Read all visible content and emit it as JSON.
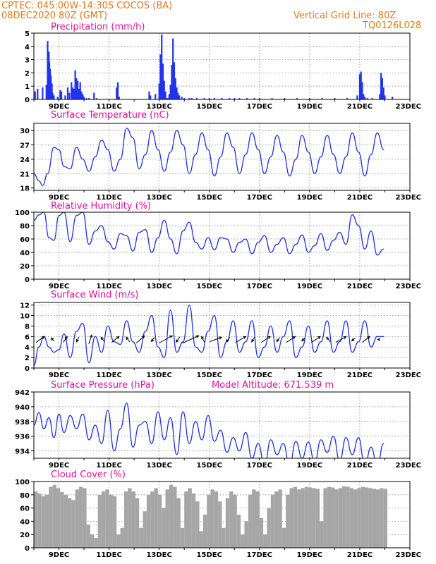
{
  "header": {
    "line1_left": "CPTEC:   045:00W-14:30S   COCOS (BA)",
    "line2_left": "08DEC2020 80Z (GMT)",
    "line1_right": "Vertical Grid Line: 80Z",
    "line2_right": "TQ0126L028"
  },
  "x_labels": [
    "9DEC",
    "11DEC",
    "13DEC",
    "15DEC",
    "17DEC",
    "19DEC",
    "21DEC",
    "23DEC"
  ],
  "colors": {
    "header": "#e07a1a",
    "panel_title": "#e0109a",
    "line": "#2233dd",
    "bars": "#2233ee",
    "cloud": "#a6a6a6",
    "arrows": "#000000"
  },
  "chart_data": [
    {
      "id": "precip",
      "type": "bar",
      "title": "Precipitation (mm/h)",
      "ylim": [
        0,
        5
      ],
      "yticks": [
        0,
        1,
        2,
        3,
        4,
        5
      ],
      "x": [
        0.05,
        0.15,
        0.35,
        0.5,
        0.55,
        0.6,
        0.62,
        0.65,
        0.68,
        0.72,
        0.75,
        0.8,
        0.95,
        1.05,
        1.1,
        1.25,
        1.35,
        1.42,
        1.5,
        1.55,
        1.6,
        1.65,
        1.7,
        1.75,
        1.8,
        1.85,
        1.9,
        1.95,
        2.0,
        2.1,
        2.2,
        2.4,
        2.5,
        3.3,
        3.35,
        3.4,
        4.6,
        4.65,
        4.85,
        5.0,
        5.05,
        5.1,
        5.15,
        5.2,
        5.25,
        5.3,
        5.35,
        5.4,
        5.45,
        5.5,
        5.55,
        5.6,
        5.65,
        5.7,
        5.75,
        5.8,
        5.9,
        6.0,
        6.2,
        6.3,
        6.5,
        6.8,
        7.0,
        7.2,
        7.5,
        7.8,
        8.0,
        8.2,
        8.5,
        8.8,
        9.0,
        9.5,
        10.0,
        10.5,
        11.0,
        11.5,
        12.0,
        12.5,
        12.9,
        13.0,
        13.05,
        13.1,
        13.15,
        13.2,
        13.3,
        13.5,
        13.8,
        13.85,
        13.9,
        13.95,
        14.0,
        14.3
      ],
      "values": [
        0.6,
        0.8,
        0.9,
        1.1,
        4.4,
        3.6,
        2.8,
        2.3,
        1.8,
        1.2,
        0.5,
        0.3,
        0.2,
        0.7,
        0.6,
        0.3,
        0.9,
        0.5,
        1.3,
        0.9,
        0.8,
        2.2,
        1.6,
        1.4,
        0.8,
        1.3,
        0.6,
        0.4,
        0.2,
        0.1,
        0.1,
        0.5,
        0.1,
        0.9,
        1.3,
        0.2,
        0.6,
        0.3,
        0.4,
        1.2,
        3.4,
        4.9,
        2.7,
        1.4,
        0.6,
        0.1,
        0.1,
        0.4,
        1.1,
        2.6,
        4.6,
        2.8,
        1.6,
        0.9,
        0.5,
        0.3,
        0.2,
        0.1,
        0.1,
        0.1,
        0.1,
        0.1,
        0.1,
        0.1,
        0.1,
        0.1,
        0.1,
        0.1,
        0.1,
        0.1,
        0.1,
        0.1,
        0.1,
        0.1,
        0.1,
        0.1,
        0.1,
        0.1,
        0.3,
        1.9,
        2.1,
        1.3,
        0.4,
        0.2,
        0.1,
        0.1,
        0.4,
        2.0,
        1.6,
        0.9,
        0.3,
        0.2
      ]
    },
    {
      "id": "temp",
      "type": "line",
      "title": "Surface Temperature (nC)",
      "ylim": [
        17.5,
        31.5
      ],
      "yticks": [
        18,
        21,
        24,
        27,
        30
      ],
      "x": [
        0,
        0.2,
        0.35,
        0.55,
        0.8,
        1.0,
        1.2,
        1.45,
        1.7,
        1.95,
        2.2,
        2.45,
        2.7,
        2.95,
        3.2,
        3.45,
        3.7,
        3.95,
        4.2,
        4.45,
        4.7,
        4.95,
        5.2,
        5.45,
        5.7,
        5.95,
        6.2,
        6.45,
        6.7,
        6.95,
        7.2,
        7.45,
        7.7,
        7.95,
        8.2,
        8.45,
        8.7,
        8.95,
        9.2,
        9.45,
        9.7,
        9.95,
        10.2,
        10.45,
        10.7,
        10.95,
        11.2,
        11.45,
        11.7,
        11.95,
        12.2,
        12.45,
        12.7,
        12.95,
        13.2,
        13.45,
        13.7,
        13.95
      ],
      "values": [
        21,
        19.5,
        18.5,
        21,
        26.5,
        26,
        22.5,
        22,
        26.5,
        24,
        21.5,
        24.5,
        28,
        26,
        21.5,
        24,
        30.5,
        28.5,
        22,
        25,
        30,
        26,
        21.5,
        25.5,
        30,
        27,
        21,
        25,
        29.5,
        26,
        20.5,
        24.5,
        29.5,
        26.5,
        21,
        25,
        29.5,
        26,
        21,
        24.5,
        29,
        25.5,
        20.5,
        24,
        29,
        25.5,
        21,
        24.5,
        29,
        25,
        21,
        24.5,
        29.5,
        25.5,
        20.5,
        25,
        29.5,
        26
      ]
    },
    {
      "id": "rh",
      "type": "line",
      "title": "Relative Humidity (%)",
      "ylim": [
        0,
        100
      ],
      "yticks": [
        0,
        20,
        40,
        60,
        80,
        100
      ],
      "x": [
        0,
        0.2,
        0.4,
        0.6,
        0.8,
        1.0,
        1.2,
        1.45,
        1.7,
        1.95,
        2.2,
        2.45,
        2.7,
        2.95,
        3.2,
        3.45,
        3.7,
        3.95,
        4.2,
        4.45,
        4.7,
        4.95,
        5.2,
        5.45,
        5.7,
        5.95,
        6.2,
        6.45,
        6.7,
        6.95,
        7.2,
        7.45,
        7.7,
        7.95,
        8.2,
        8.45,
        8.7,
        8.95,
        9.2,
        9.45,
        9.7,
        9.95,
        10.2,
        10.45,
        10.7,
        10.95,
        11.2,
        11.45,
        11.7,
        11.95,
        12.2,
        12.45,
        12.7,
        12.95,
        13.2,
        13.45,
        13.7,
        13.95
      ],
      "values": [
        88,
        96,
        100,
        62,
        58,
        95,
        100,
        56,
        95,
        100,
        52,
        72,
        80,
        56,
        45,
        68,
        65,
        42,
        70,
        74,
        40,
        62,
        88,
        60,
        38,
        72,
        85,
        55,
        45,
        62,
        44,
        62,
        60,
        40,
        55,
        60,
        38,
        55,
        65,
        40,
        52,
        62,
        38,
        52,
        66,
        40,
        50,
        68,
        43,
        58,
        70,
        52,
        96,
        80,
        45,
        72,
        36,
        45
      ]
    },
    {
      "id": "wind",
      "type": "line",
      "title": "Surface Wind (m/s)",
      "ylim": [
        0,
        12.5
      ],
      "yticks": [
        0,
        2,
        4,
        6,
        8,
        10,
        12
      ],
      "x": [
        0,
        0.2,
        0.4,
        0.6,
        0.8,
        1.0,
        1.2,
        1.45,
        1.7,
        1.95,
        2.2,
        2.45,
        2.7,
        2.95,
        3.2,
        3.45,
        3.7,
        3.95,
        4.2,
        4.45,
        4.7,
        4.95,
        5.2,
        5.45,
        5.7,
        5.95,
        6.2,
        6.45,
        6.7,
        6.95,
        7.2,
        7.45,
        7.7,
        7.95,
        8.2,
        8.45,
        8.7,
        8.95,
        9.2,
        9.45,
        9.7,
        9.95,
        10.2,
        10.45,
        10.7,
        10.95,
        11.2,
        11.45,
        11.7,
        11.95,
        12.2,
        12.45,
        12.7,
        12.95,
        13.2,
        13.45,
        13.7,
        13.95
      ],
      "values": [
        0.5,
        4,
        6,
        4,
        3,
        3.5,
        6.5,
        2,
        7,
        8.5,
        1,
        6,
        3,
        8,
        5,
        4.5,
        9,
        5,
        3,
        7,
        10,
        4,
        2,
        11,
        3,
        5,
        12,
        4,
        3,
        7,
        10,
        2,
        5,
        9,
        3,
        5,
        9,
        2,
        4,
        8,
        3,
        6,
        9,
        2,
        4,
        8,
        3,
        5,
        9,
        3,
        5,
        9,
        3,
        5,
        9,
        4,
        6,
        6
      ]
    },
    {
      "id": "pressure",
      "type": "line",
      "title": "Surface Pressure (hPa)",
      "annotation": "Model Altitude: 671.539 m",
      "ylim": [
        933,
        942
      ],
      "yticks": [
        934,
        936,
        938,
        940,
        942
      ],
      "x": [
        0,
        0.2,
        0.4,
        0.6,
        0.8,
        1.0,
        1.2,
        1.45,
        1.7,
        1.95,
        2.2,
        2.45,
        2.7,
        2.95,
        3.2,
        3.45,
        3.7,
        3.95,
        4.2,
        4.45,
        4.7,
        4.95,
        5.2,
        5.45,
        5.7,
        5.95,
        6.2,
        6.45,
        6.7,
        6.95,
        7.2,
        7.45,
        7.7,
        7.95,
        8.2,
        8.45,
        8.7,
        8.95,
        9.2,
        9.45,
        9.7,
        9.95,
        10.2,
        10.45,
        10.7,
        10.95,
        11.2,
        11.45,
        11.7,
        11.95,
        12.2,
        12.45,
        12.7,
        12.95,
        13.2,
        13.45,
        13.7,
        13.95
      ],
      "values": [
        937.5,
        939.2,
        937,
        938.5,
        935.8,
        939,
        936.5,
        938.8,
        937,
        939,
        935.5,
        937.5,
        935,
        939.5,
        934,
        937,
        940.5,
        934.5,
        937.5,
        938,
        935,
        939.3,
        935.5,
        938.5,
        933.5,
        939.3,
        935,
        938,
        935.5,
        938.8,
        935.3,
        936.8,
        933.8,
        935.8,
        934,
        936.5,
        933,
        935,
        932,
        935.5,
        933.5,
        935,
        932,
        935.3,
        933,
        935.2,
        932.4,
        935.5,
        933.8,
        936,
        932.6,
        935.8,
        933.5,
        935.8,
        932,
        934.5,
        932,
        935
      ]
    },
    {
      "id": "cloud",
      "type": "bar",
      "title": "Cloud Cover (%)",
      "ylim": [
        0,
        100
      ],
      "yticks": [
        0,
        20,
        40,
        60,
        80,
        100
      ],
      "x": [
        0,
        0.15,
        0.3,
        0.45,
        0.6,
        0.75,
        0.9,
        1.05,
        1.2,
        1.35,
        1.5,
        1.65,
        1.8,
        1.95,
        2.1,
        2.25,
        2.4,
        2.55,
        2.7,
        2.85,
        3.0,
        3.15,
        3.3,
        3.45,
        3.6,
        3.75,
        3.9,
        4.05,
        4.2,
        4.35,
        4.5,
        4.65,
        4.8,
        4.95,
        5.1,
        5.25,
        5.4,
        5.55,
        5.7,
        5.85,
        6.0,
        6.15,
        6.3,
        6.45,
        6.6,
        6.75,
        6.9,
        7.05,
        7.2,
        7.35,
        7.5,
        7.65,
        7.8,
        7.95,
        8.1,
        8.25,
        8.4,
        8.55,
        8.7,
        8.85,
        9.0,
        9.15,
        9.3,
        9.45,
        9.6,
        9.75,
        9.9,
        10.05,
        10.2,
        10.35,
        10.5,
        10.65,
        10.8,
        10.95,
        11.1,
        11.25,
        11.4,
        11.55,
        11.7,
        11.85,
        12.0,
        12.15,
        12.3,
        12.45,
        12.6,
        12.75,
        12.9,
        13.05,
        13.2,
        13.35,
        13.5,
        13.65,
        13.8,
        13.95
      ],
      "values": [
        85,
        82,
        78,
        80,
        92,
        95,
        90,
        84,
        80,
        75,
        72,
        88,
        92,
        90,
        35,
        20,
        15,
        80,
        85,
        88,
        80,
        78,
        20,
        30,
        85,
        90,
        85,
        75,
        30,
        55,
        80,
        85,
        90,
        80,
        60,
        88,
        95,
        92,
        75,
        30,
        85,
        90,
        82,
        70,
        25,
        50,
        80,
        88,
        85,
        70,
        30,
        75,
        85,
        80,
        50,
        20,
        40,
        80,
        88,
        85,
        45,
        20,
        60,
        80,
        85,
        88,
        30,
        80,
        90,
        92,
        88,
        90,
        92,
        91,
        90,
        89,
        40,
        90,
        92,
        91,
        88,
        90,
        93,
        92,
        90,
        88,
        90,
        92,
        91,
        90,
        89,
        88,
        90,
        89
      ]
    }
  ],
  "wind_vectors": {
    "x": [
      0.25,
      0.75,
      1.25,
      1.75,
      2.25,
      2.75,
      3.25,
      3.75,
      4.25,
      4.75,
      5.25,
      5.75,
      6.25,
      6.75,
      7.25,
      7.75,
      8.25,
      8.75,
      9.25,
      9.75,
      10.25,
      10.75,
      11.25,
      11.75,
      12.25,
      12.75,
      13.25,
      13.75
    ],
    "u": [
      2.8,
      -1.0,
      1.3,
      -0.8,
      1.0,
      -1.2,
      2.5,
      -1.2,
      2.8,
      -1.0,
      4.5,
      -1.2,
      5.5,
      -1.0,
      4.0,
      -1.2,
      3.5,
      -1.0,
      3.0,
      -1.0,
      3.0,
      -1.0,
      3.0,
      -1.2,
      3.5,
      -1.2,
      2.5,
      -0.6
    ],
    "v": [
      2.0,
      1.0,
      2.0,
      -1.6,
      3.0,
      1.5,
      2.0,
      1.6,
      2.5,
      -1.4,
      2.5,
      -1.8,
      2.5,
      2.0,
      1.5,
      -1.6,
      2.0,
      -1.6,
      2.0,
      -1.4,
      2.0,
      -1.0,
      2.0,
      1.5,
      2.0,
      -1.0,
      2.0,
      0.0
    ]
  }
}
